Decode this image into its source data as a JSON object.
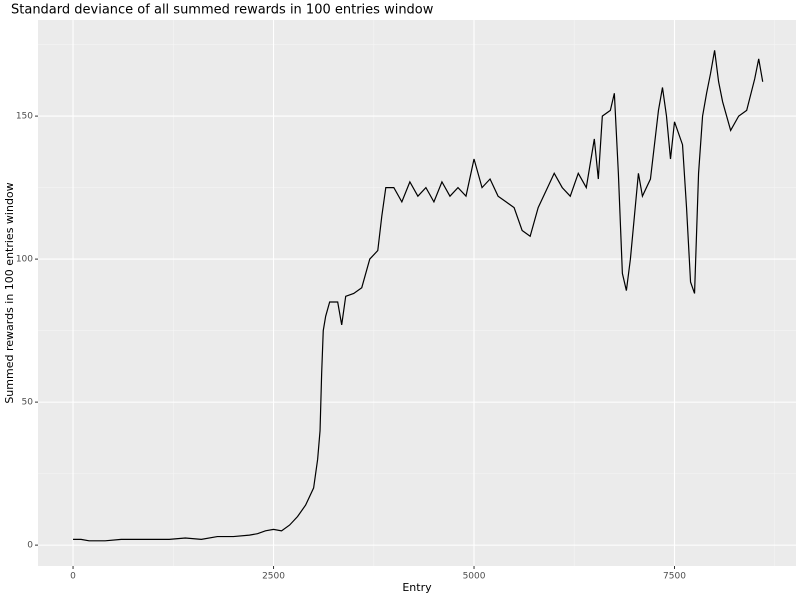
{
  "chart_data": {
    "type": "line",
    "title": "Standard deviance of all summed rewards in 100 entries window",
    "x_label": "Entry",
    "y_label": "Summed rewards in 100 entries window",
    "xlim": [
      -437,
      9015
    ],
    "ylim": [
      -7.3,
      183.6
    ],
    "xticks": [
      0,
      2500,
      5000,
      7500
    ],
    "yticks": [
      0,
      50,
      100,
      150
    ],
    "grid": true,
    "x": [
      0,
      100,
      200,
      400,
      600,
      800,
      1000,
      1200,
      1400,
      1600,
      1800,
      2000,
      2200,
      2300,
      2400,
      2500,
      2600,
      2700,
      2800,
      2900,
      3000,
      3050,
      3080,
      3100,
      3120,
      3150,
      3200,
      3300,
      3350,
      3400,
      3500,
      3600,
      3700,
      3800,
      3850,
      3900,
      4000,
      4100,
      4200,
      4300,
      4400,
      4500,
      4600,
      4700,
      4800,
      4900,
      5000,
      5100,
      5200,
      5300,
      5400,
      5500,
      5600,
      5700,
      5800,
      5900,
      6000,
      6100,
      6200,
      6300,
      6400,
      6500,
      6550,
      6600,
      6700,
      6750,
      6800,
      6850,
      6900,
      6950,
      7000,
      7050,
      7100,
      7200,
      7300,
      7350,
      7400,
      7450,
      7500,
      7600,
      7650,
      7700,
      7750,
      7800,
      7850,
      7900,
      7950,
      8000,
      8050,
      8100,
      8200,
      8300,
      8400,
      8500,
      8550,
      8600
    ],
    "series": [
      {
        "name": "rewards",
        "color": "#000000",
        "values": [
          2,
          2,
          1.5,
          1.5,
          2,
          2,
          2,
          2,
          2.5,
          2,
          3,
          3,
          3.5,
          4,
          5,
          5.5,
          5,
          7,
          10,
          14,
          20,
          30,
          40,
          60,
          75,
          80,
          85,
          85,
          77,
          87,
          88,
          90,
          100,
          103,
          115,
          125,
          125,
          120,
          127,
          122,
          125,
          120,
          127,
          122,
          125,
          122,
          135,
          125,
          128,
          122,
          120,
          118,
          110,
          108,
          118,
          124,
          130,
          125,
          122,
          130,
          125,
          142,
          128,
          150,
          152,
          158,
          130,
          95,
          89,
          100,
          115,
          130,
          122,
          128,
          152,
          160,
          150,
          135,
          148,
          140,
          118,
          92,
          88,
          130,
          150,
          158,
          165,
          173,
          162,
          155,
          145,
          150,
          152,
          163,
          170,
          162
        ]
      }
    ]
  }
}
